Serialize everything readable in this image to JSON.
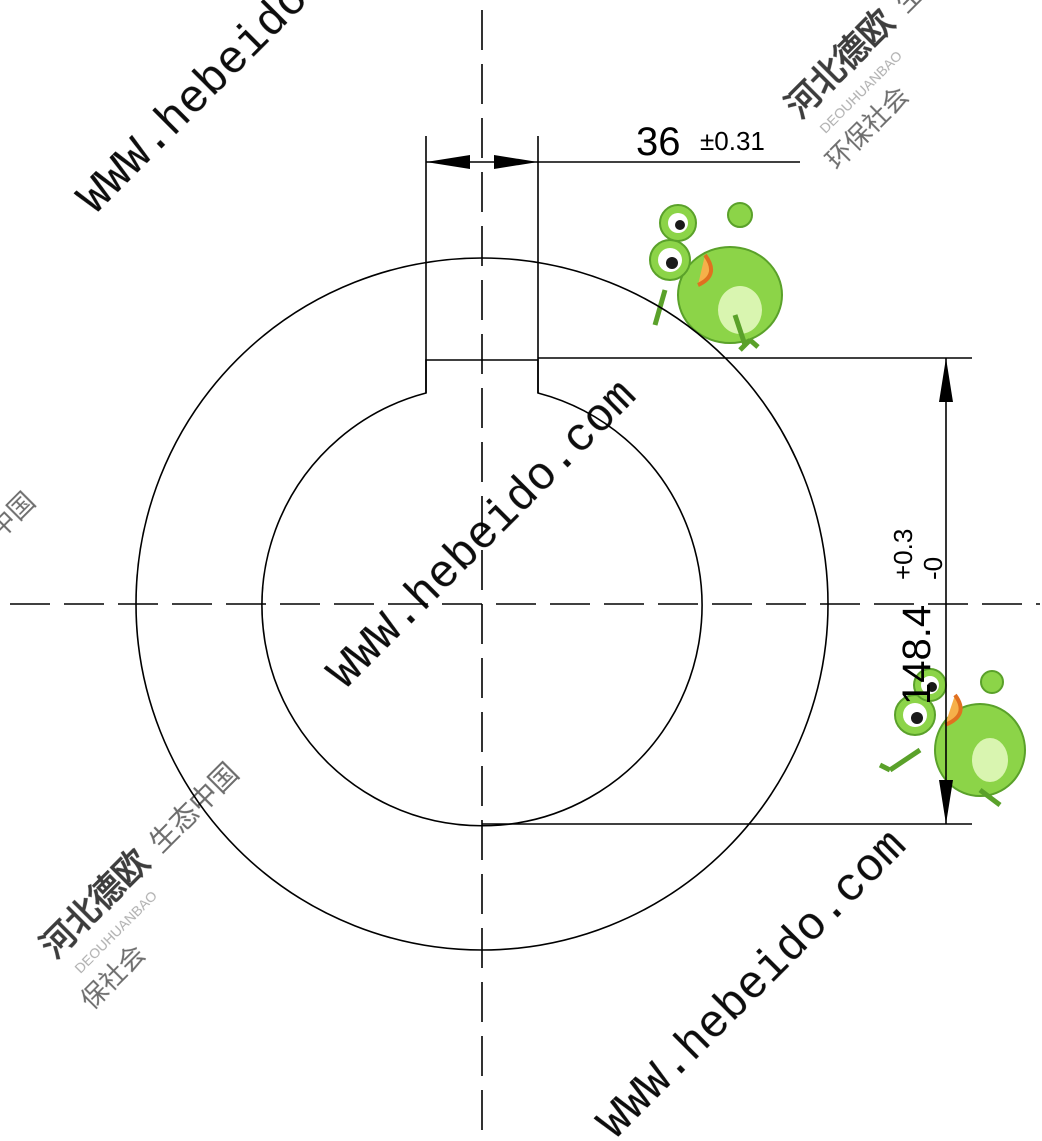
{
  "dimensions": {
    "width": {
      "value": "36",
      "tolerance": "±0.31"
    },
    "depth": {
      "value": "148.4",
      "tol_upper": "+0.3",
      "tol_lower": "-0"
    }
  },
  "watermarks": {
    "url": "WWW.hebeido.com",
    "url_partial": "WWW.hebeido",
    "brand_cn": "河北德欧",
    "brand_en": "DEOUHUANBAO",
    "slogan_1": "环保社会",
    "slogan_2": "生态中国",
    "slogan_1_partial": "保社会",
    "slogan_2_partial": "态中国",
    "slogan_2_partial_b": "中国"
  },
  "colors": {
    "line": "#000000",
    "frog_green": "#8cd448",
    "frog_light": "#d9f5b0"
  },
  "icons": [
    "frog-mascot"
  ]
}
